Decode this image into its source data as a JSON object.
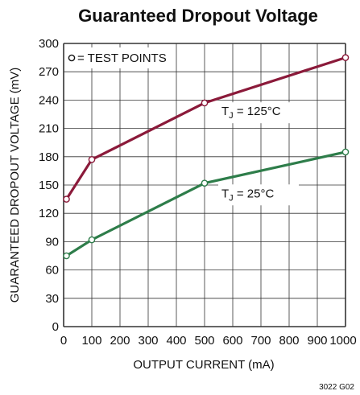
{
  "chart_data": {
    "type": "line",
    "title": "Guaranteed Dropout Voltage",
    "xlabel": "OUTPUT CURRENT (mA)",
    "ylabel": "GUARANTEED DROPOUT VOLTAGE (mV)",
    "xlim": [
      0,
      1000
    ],
    "ylim": [
      0,
      300
    ],
    "xticks": [
      0,
      100,
      200,
      300,
      400,
      500,
      600,
      700,
      800,
      900,
      1000
    ],
    "yticks": [
      0,
      30,
      60,
      90,
      120,
      150,
      180,
      210,
      240,
      270,
      300
    ],
    "grid": true,
    "legend": {
      "text": "= TEST POINTS",
      "position": "top-left"
    },
    "series": [
      {
        "label_prefix": "T",
        "label_sub": "J",
        "label_suffix": " = 125°C",
        "color": "#8b1a3a",
        "points": [
          {
            "x": 10,
            "y": 135
          },
          {
            "x": 100,
            "y": 177
          },
          {
            "x": 500,
            "y": 237
          },
          {
            "x": 1000,
            "y": 285
          }
        ],
        "label_at": {
          "x": 560,
          "y": 224
        }
      },
      {
        "label_prefix": "T",
        "label_sub": "J",
        "label_suffix": " = 25°C",
        "color": "#2e7d4a",
        "points": [
          {
            "x": 10,
            "y": 75
          },
          {
            "x": 100,
            "y": 92
          },
          {
            "x": 500,
            "y": 152
          },
          {
            "x": 1000,
            "y": 185
          }
        ],
        "label_at": {
          "x": 560,
          "y": 137
        }
      }
    ],
    "figure_code": "3022 G02"
  }
}
